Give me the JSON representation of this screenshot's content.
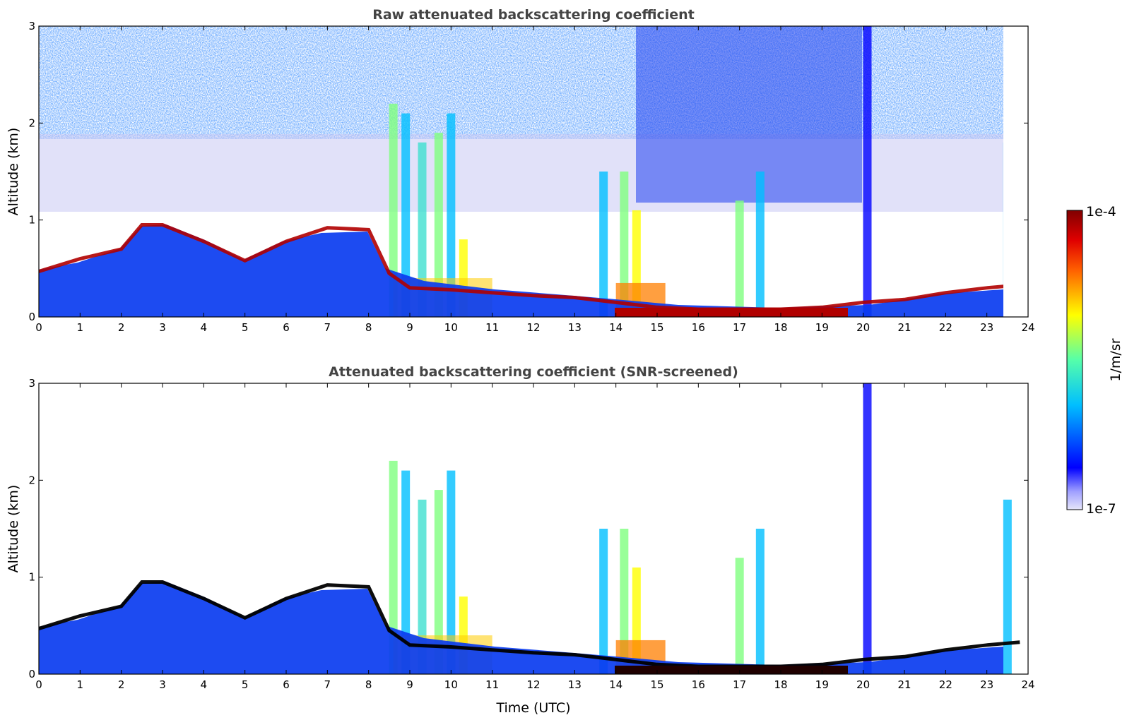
{
  "chart_data": [
    {
      "type": "heatmap",
      "title": "Raw attenuated backscattering coefficient",
      "xlabel": "",
      "ylabel": "Altitude (km)",
      "xlim": [
        0,
        24
      ],
      "ylim": [
        0,
        3
      ],
      "x_ticks": [
        "0",
        "1",
        "2",
        "3",
        "4",
        "5",
        "6",
        "7",
        "8",
        "9",
        "10",
        "11",
        "12",
        "13",
        "14",
        "15",
        "16",
        "17",
        "18",
        "19",
        "20",
        "21",
        "22",
        "23",
        "24"
      ],
      "y_ticks": [
        "0",
        "1",
        "2",
        "3"
      ],
      "boundary_layer_top_km": {
        "x": [
          0,
          1,
          2,
          2.5,
          3,
          4,
          5,
          6,
          7,
          8,
          8.5,
          9,
          10,
          11,
          12,
          13,
          14,
          15,
          16,
          17,
          18,
          19,
          20,
          21,
          22,
          23,
          23.8
        ],
        "y": [
          0.47,
          0.6,
          0.7,
          0.95,
          0.95,
          0.78,
          0.58,
          0.78,
          0.92,
          0.9,
          0.45,
          0.3,
          0.28,
          0.25,
          0.22,
          0.2,
          0.15,
          0.1,
          0.08,
          0.08,
          0.08,
          0.1,
          0.15,
          0.18,
          0.25,
          0.3,
          0.33
        ]
      }
    },
    {
      "type": "heatmap",
      "title": "Attenuated backscattering coefficient (SNR-screened)",
      "xlabel": "Time (UTC)",
      "ylabel": "Altitude (km)",
      "xlim": [
        0,
        24
      ],
      "ylim": [
        0,
        3
      ],
      "x_ticks": [
        "0",
        "1",
        "2",
        "3",
        "4",
        "5",
        "6",
        "7",
        "8",
        "9",
        "10",
        "11",
        "12",
        "13",
        "14",
        "15",
        "16",
        "17",
        "18",
        "19",
        "20",
        "21",
        "22",
        "23",
        "24"
      ],
      "y_ticks": [
        "0",
        "1",
        "2",
        "3"
      ]
    }
  ],
  "colorbar": {
    "label": "1/m/sr",
    "max_label": "1e-4",
    "min_label": "1e-7",
    "scale": "log",
    "colormap": "jet",
    "colors": [
      "#e6e6fa",
      "#0000ff",
      "#00bfff",
      "#7fff7f",
      "#ffff00",
      "#ff7f00",
      "#ff0000",
      "#800000"
    ]
  }
}
